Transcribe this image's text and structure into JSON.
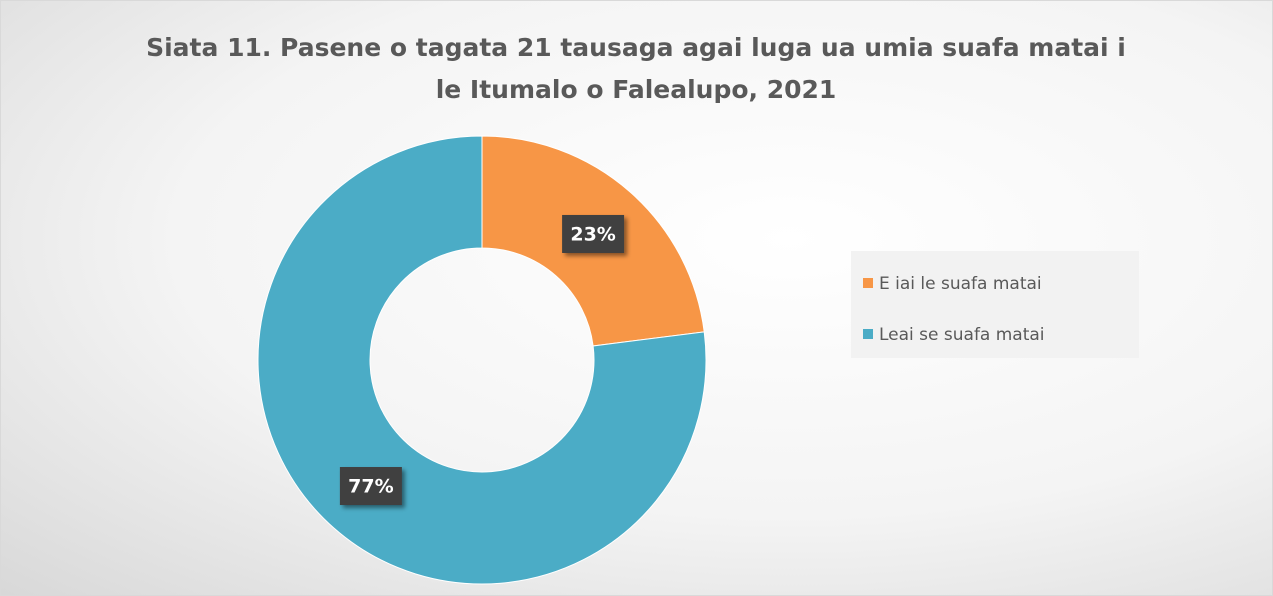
{
  "chart_data": {
    "type": "donut",
    "title": "Siata 11. Pasene o tagata 21 tausaga agai luga ua umia suafa matai i le Itumalo o Falealupo, 2021",
    "categories": [
      "E iai le suafa matai",
      "Leai se suafa matai"
    ],
    "values": [
      23,
      77
    ],
    "value_labels": [
      "23%",
      "77%"
    ],
    "colors": [
      "#f79646",
      "#4bacc6"
    ],
    "legend": "right"
  }
}
